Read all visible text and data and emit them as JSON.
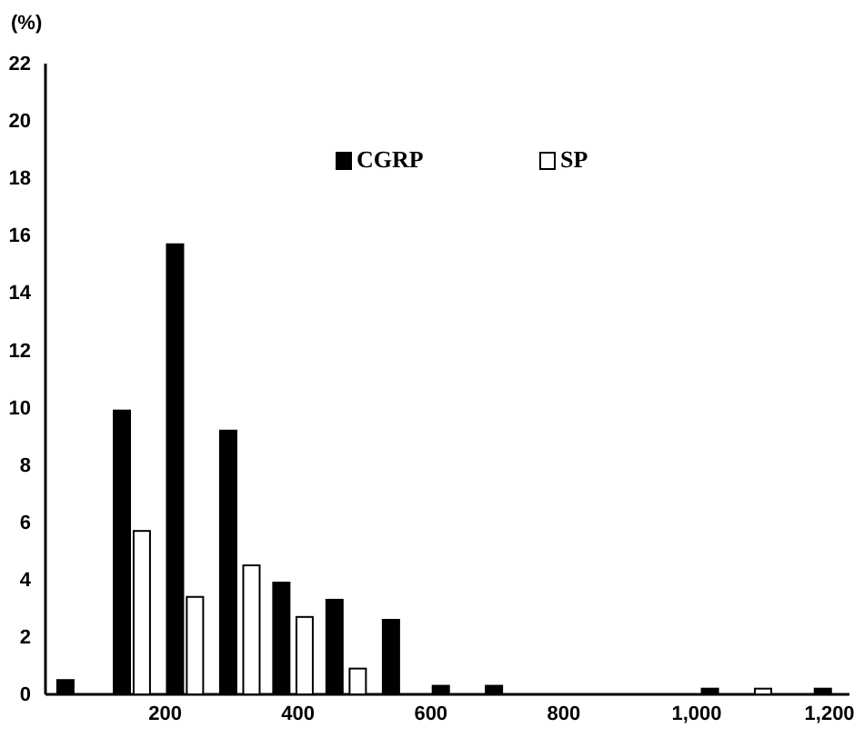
{
  "chart_data": {
    "type": "bar",
    "ylabel": "(%)",
    "xlim": [
      20,
      1230
    ],
    "ylim": [
      0,
      22
    ],
    "xticks": [
      {
        "value": 200,
        "label": "200"
      },
      {
        "value": 400,
        "label": "400"
      },
      {
        "value": 600,
        "label": "600"
      },
      {
        "value": 800,
        "label": "800"
      },
      {
        "value": 1000,
        "label": "1,000"
      },
      {
        "value": 1200,
        "label": "1,200"
      }
    ],
    "yticks": [
      0,
      2,
      4,
      6,
      8,
      10,
      12,
      14,
      16,
      18,
      20,
      22
    ],
    "legend": "top",
    "grid": false,
    "series": [
      {
        "name": "CGRP",
        "color": "#000000",
        "x": [
          50,
          135,
          215,
          295,
          375,
          455,
          540,
          615,
          695,
          1020,
          1190
        ],
        "values": [
          0.5,
          9.9,
          15.7,
          9.2,
          3.9,
          3.3,
          2.6,
          0.3,
          0.3,
          0.2,
          0.2
        ]
      },
      {
        "name": "SP",
        "color": "#ffffff",
        "x": [
          165,
          245,
          330,
          410,
          490,
          1100
        ],
        "values": [
          5.7,
          3.4,
          4.5,
          2.7,
          0.9,
          0.2
        ]
      }
    ]
  }
}
